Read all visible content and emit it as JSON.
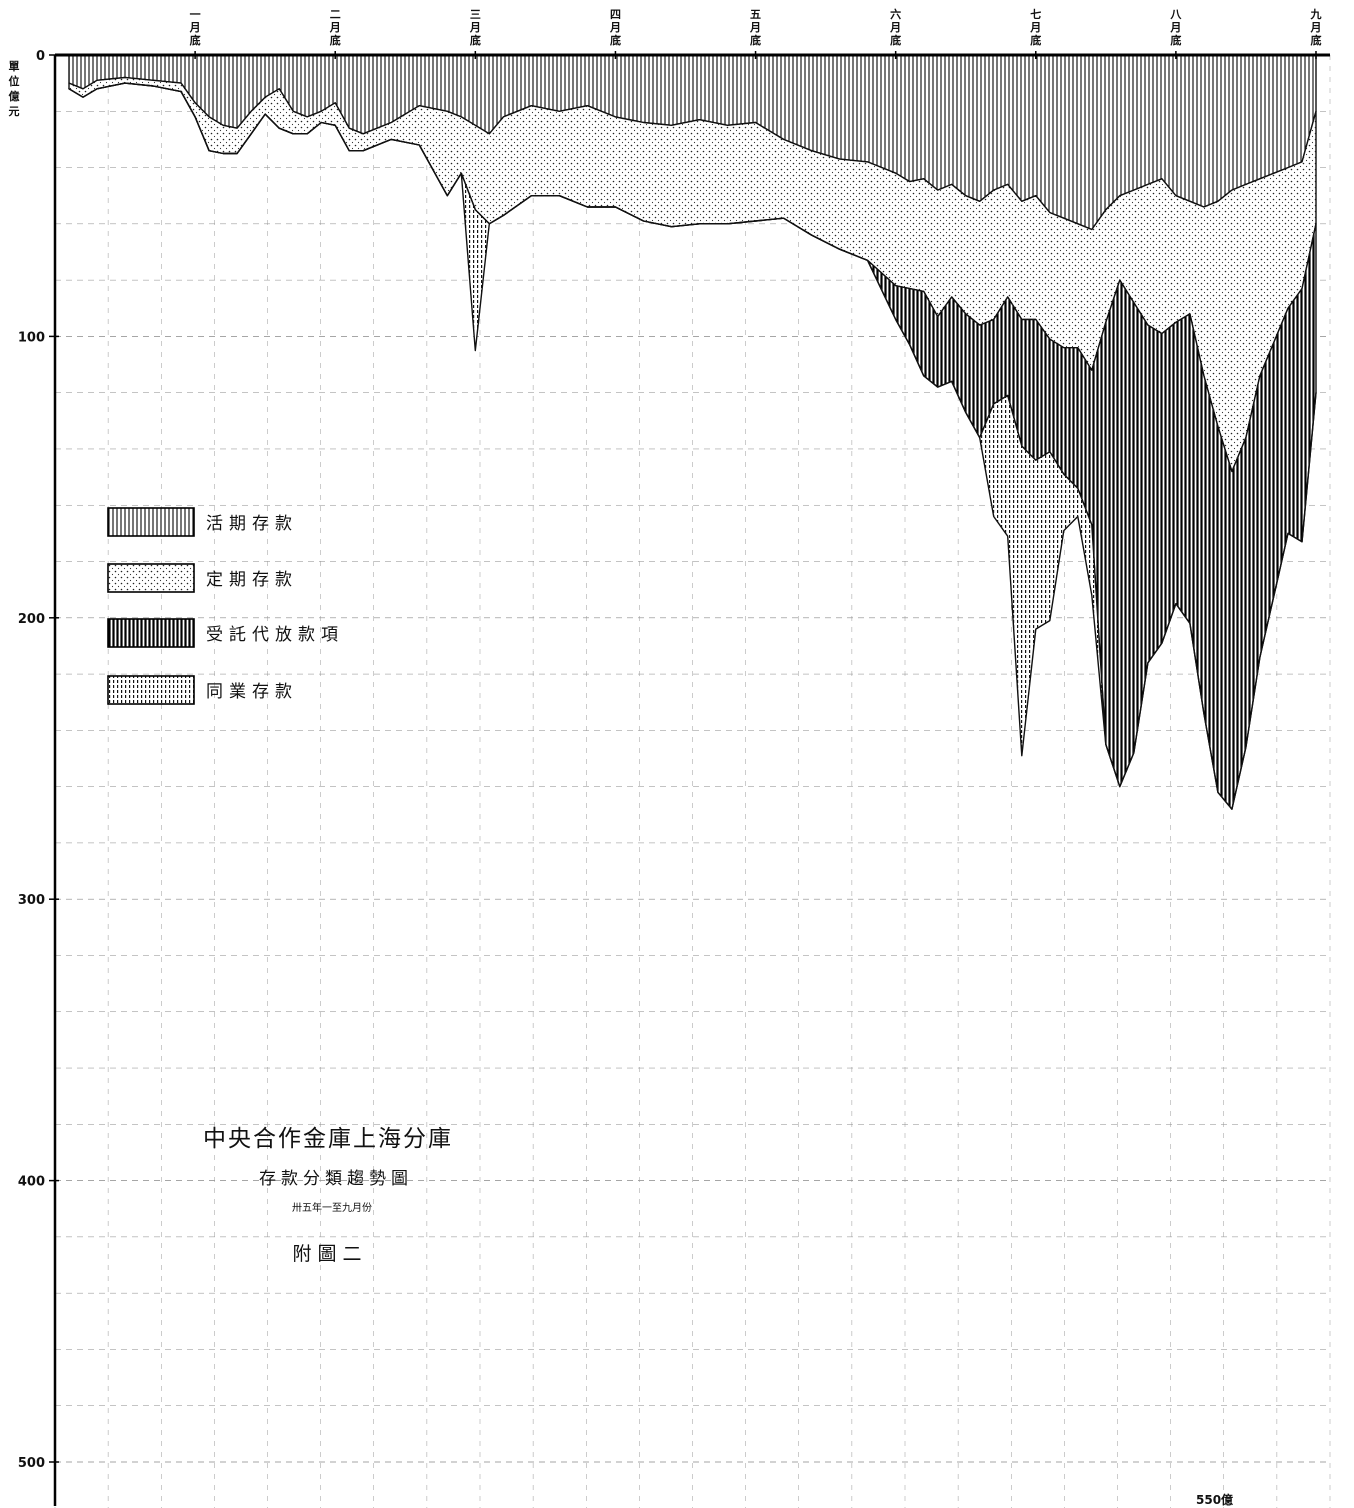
{
  "chart_data": {
    "type": "area",
    "title": "中央合作金庫上海分庫",
    "subtitle": "存款分類趨勢圖",
    "date_range": "卅五年一至九月份",
    "figure_label": "附圖二",
    "ylabel": "單位億元",
    "ylim": [
      0,
      520
    ],
    "y_axis_direction": "downward",
    "y_ticks": [
      0,
      100,
      200,
      300,
      400,
      500
    ],
    "stacked": true,
    "grid": true,
    "legend_position": "left-middle",
    "x_range": [
      0,
      9.1
    ],
    "month_markers": [
      {
        "x": 1,
        "label": "一月底"
      },
      {
        "x": 2,
        "label": "二月底"
      },
      {
        "x": 3,
        "label": "三月底"
      },
      {
        "x": 4,
        "label": "四月底"
      },
      {
        "x": 5,
        "label": "五月底"
      },
      {
        "x": 6,
        "label": "六月底"
      },
      {
        "x": 7,
        "label": "七月底"
      },
      {
        "x": 8,
        "label": "八月底"
      },
      {
        "x": 9,
        "label": "九月底"
      }
    ],
    "annotation": "550億",
    "x": [
      0.1,
      0.2,
      0.3,
      0.5,
      0.7,
      0.9,
      1.0,
      1.1,
      1.2,
      1.3,
      1.4,
      1.5,
      1.6,
      1.7,
      1.8,
      1.9,
      2.0,
      2.1,
      2.2,
      2.4,
      2.6,
      2.8,
      2.9,
      3.0,
      3.1,
      3.2,
      3.4,
      3.6,
      3.8,
      4.0,
      4.2,
      4.4,
      4.6,
      4.8,
      5.0,
      5.2,
      5.4,
      5.6,
      5.8,
      6.0,
      6.1,
      6.2,
      6.3,
      6.4,
      6.5,
      6.6,
      6.7,
      6.8,
      6.9,
      7.0,
      7.1,
      7.2,
      7.3,
      7.4,
      7.5,
      7.6,
      7.7,
      7.8,
      7.9,
      8.0,
      8.1,
      8.2,
      8.3,
      8.4,
      8.5,
      8.6,
      8.7,
      8.8,
      8.9,
      9.0
    ],
    "series": [
      {
        "name": "活期存款",
        "pattern": "vertical-lines",
        "values": [
          10,
          12,
          9,
          8,
          9,
          10,
          17,
          22,
          25,
          26,
          20,
          15,
          12,
          20,
          22,
          20,
          17,
          26,
          28,
          24,
          18,
          20,
          22,
          25,
          28,
          22,
          18,
          20,
          18,
          22,
          24,
          25,
          23,
          25,
          24,
          30,
          34,
          37,
          38,
          42,
          45,
          44,
          48,
          46,
          50,
          52,
          48,
          46,
          52,
          50,
          56,
          58,
          60,
          62,
          55,
          50,
          48,
          46,
          44,
          50,
          52,
          54,
          52,
          48,
          46,
          44,
          42,
          40,
          38,
          20
        ]
      },
      {
        "name": "定期存款",
        "pattern": "dots",
        "values": [
          2,
          3,
          3,
          2,
          2,
          3,
          5,
          12,
          10,
          9,
          8,
          6,
          14,
          8,
          6,
          4,
          8,
          8,
          6,
          6,
          14,
          30,
          20,
          30,
          32,
          35,
          32,
          30,
          36,
          32,
          35,
          36,
          37,
          35,
          35,
          28,
          30,
          32,
          35,
          40,
          38,
          40,
          45,
          40,
          42,
          44,
          46,
          40,
          42,
          44,
          45,
          46,
          44,
          50,
          40,
          30,
          40,
          50,
          55,
          45,
          40,
          60,
          80,
          100,
          90,
          70,
          60,
          50,
          45,
          40
        ]
      },
      {
        "name": "受託代放款項",
        "pattern": "thick-vertical-lines",
        "values": [
          0,
          0,
          0,
          0,
          0,
          0,
          0,
          0,
          0,
          0,
          0,
          0,
          0,
          0,
          0,
          0,
          0,
          0,
          0,
          0,
          0,
          0,
          0,
          0,
          0,
          0,
          0,
          0,
          0,
          0,
          0,
          0,
          0,
          0,
          0,
          0,
          0,
          0,
          0,
          12,
          20,
          30,
          25,
          30,
          35,
          40,
          30,
          35,
          45,
          50,
          40,
          45,
          50,
          55,
          150,
          180,
          160,
          120,
          110,
          100,
          110,
          120,
          130,
          120,
          110,
          100,
          90,
          80,
          90,
          60
        ]
      },
      {
        "name": "同業存款",
        "pattern": "dense-dots",
        "values": [
          0,
          0,
          0,
          0,
          0,
          0,
          0,
          0,
          0,
          0,
          0,
          0,
          0,
          0,
          0,
          0,
          0,
          0,
          0,
          0,
          0,
          0,
          0,
          50,
          0,
          0,
          0,
          0,
          0,
          0,
          0,
          0,
          0,
          0,
          0,
          0,
          0,
          0,
          0,
          0,
          0,
          0,
          0,
          0,
          0,
          0,
          40,
          50,
          110,
          60,
          60,
          20,
          10,
          25,
          0,
          0,
          0,
          0,
          0,
          0,
          0,
          0,
          0,
          0,
          0,
          0,
          0,
          0,
          0,
          0
        ]
      }
    ]
  }
}
